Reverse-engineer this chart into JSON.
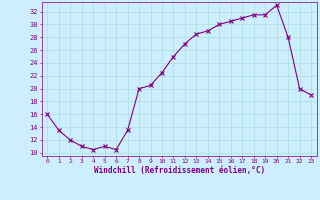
{
  "x": [
    0,
    1,
    2,
    3,
    4,
    5,
    6,
    7,
    8,
    9,
    10,
    11,
    12,
    13,
    14,
    15,
    16,
    17,
    18,
    19,
    20,
    21,
    22,
    23
  ],
  "y": [
    16,
    13.5,
    12,
    11,
    10.5,
    11,
    10.5,
    13.5,
    20,
    20.5,
    22.5,
    25,
    27,
    28.5,
    29,
    30,
    30.5,
    31,
    31.5,
    31.5,
    33,
    28,
    20,
    19
  ],
  "line_color": "#800080",
  "marker": "x",
  "marker_color": "#800080",
  "bg_color": "#cceeff",
  "grid_color": "#aadddd",
  "xlabel": "Windchill (Refroidissement éolien,°C)",
  "xlabel_color": "#800080",
  "tick_color": "#800080",
  "ylim": [
    9.5,
    33.5
  ],
  "yticks": [
    10,
    12,
    14,
    16,
    18,
    20,
    22,
    24,
    26,
    28,
    30,
    32
  ],
  "xticks": [
    0,
    1,
    2,
    3,
    4,
    5,
    6,
    7,
    8,
    9,
    10,
    11,
    12,
    13,
    14,
    15,
    16,
    17,
    18,
    19,
    20,
    21,
    22,
    23
  ],
  "figsize": [
    3.2,
    2.0
  ],
  "dpi": 100
}
